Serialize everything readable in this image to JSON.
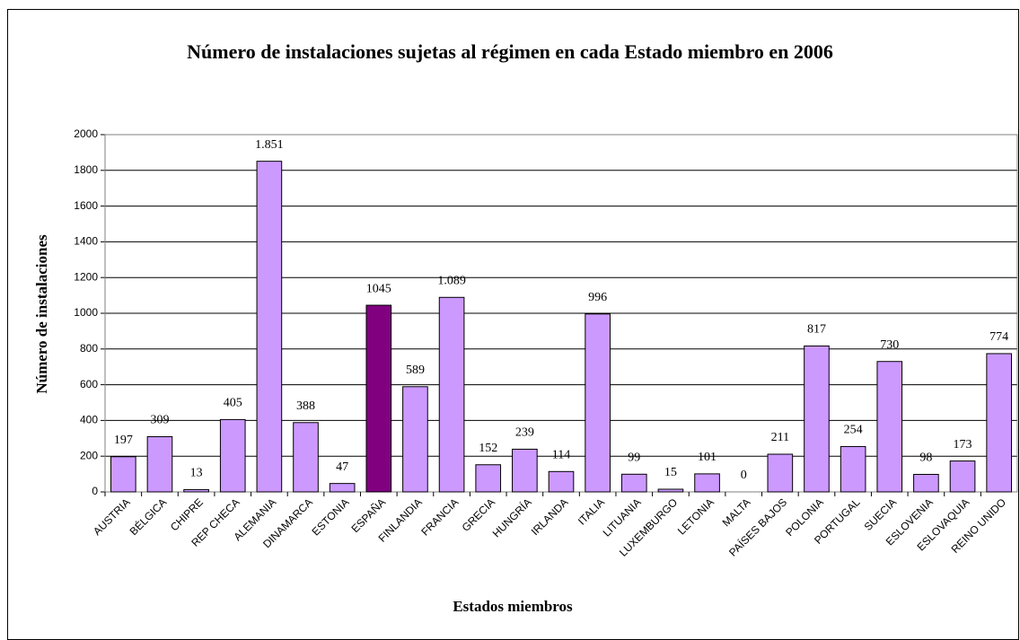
{
  "chart_data": {
    "type": "bar",
    "title": "Número de instalaciones sujetas al régimen en cada Estado miembro en 2006",
    "x_label": "Estados miembros",
    "y_label": "Número de instalaciones",
    "categories": [
      "AUSTRIA",
      "BÉLGICA",
      "CHIPRE",
      "REP CHECA",
      "ALEMANIA",
      "DINAMARCA",
      "ESTONIA",
      "ESPAÑA",
      "FINLANDIA",
      "FRANCIA",
      "GRECIA",
      "HUNGRÍA",
      "IRLANDA",
      "ITALIA",
      "LITUANIA",
      "LUXEMBURGO",
      "LETONIA",
      "MALTA",
      "PAÍSES BAJOS",
      "POLONIA",
      "PORTUGAL",
      "SUECIA",
      "ESLOVENIA",
      "ESLOVAQUIA",
      "REINO UNIDO"
    ],
    "values": [
      197,
      309,
      13,
      405,
      1851,
      388,
      47,
      1045,
      589,
      1089,
      152,
      239,
      114,
      996,
      99,
      15,
      101,
      0,
      211,
      817,
      254,
      730,
      98,
      173,
      774
    ],
    "value_labels": [
      "197",
      "309",
      "13",
      "405",
      "1.851",
      "388",
      "47",
      "1045",
      "589",
      "1.089",
      "152",
      "239",
      "114",
      "996",
      "99",
      "15",
      "101",
      "0",
      "211",
      "817",
      "254",
      "730",
      "98",
      "173",
      "774"
    ],
    "colors": [
      "#cc99ff",
      "#cc99ff",
      "#cc99ff",
      "#cc99ff",
      "#cc99ff",
      "#cc99ff",
      "#cc99ff",
      "#800080",
      "#cc99ff",
      "#cc99ff",
      "#cc99ff",
      "#cc99ff",
      "#cc99ff",
      "#cc99ff",
      "#cc99ff",
      "#cc99ff",
      "#cc99ff",
      "#cc99ff",
      "#cc99ff",
      "#cc99ff",
      "#cc99ff",
      "#cc99ff",
      "#cc99ff",
      "#cc99ff",
      "#cc99ff"
    ],
    "ylim": [
      0,
      2000
    ],
    "yticks": [
      0,
      200,
      400,
      600,
      800,
      1000,
      1200,
      1400,
      1600,
      1800,
      2000
    ],
    "grid": true
  }
}
